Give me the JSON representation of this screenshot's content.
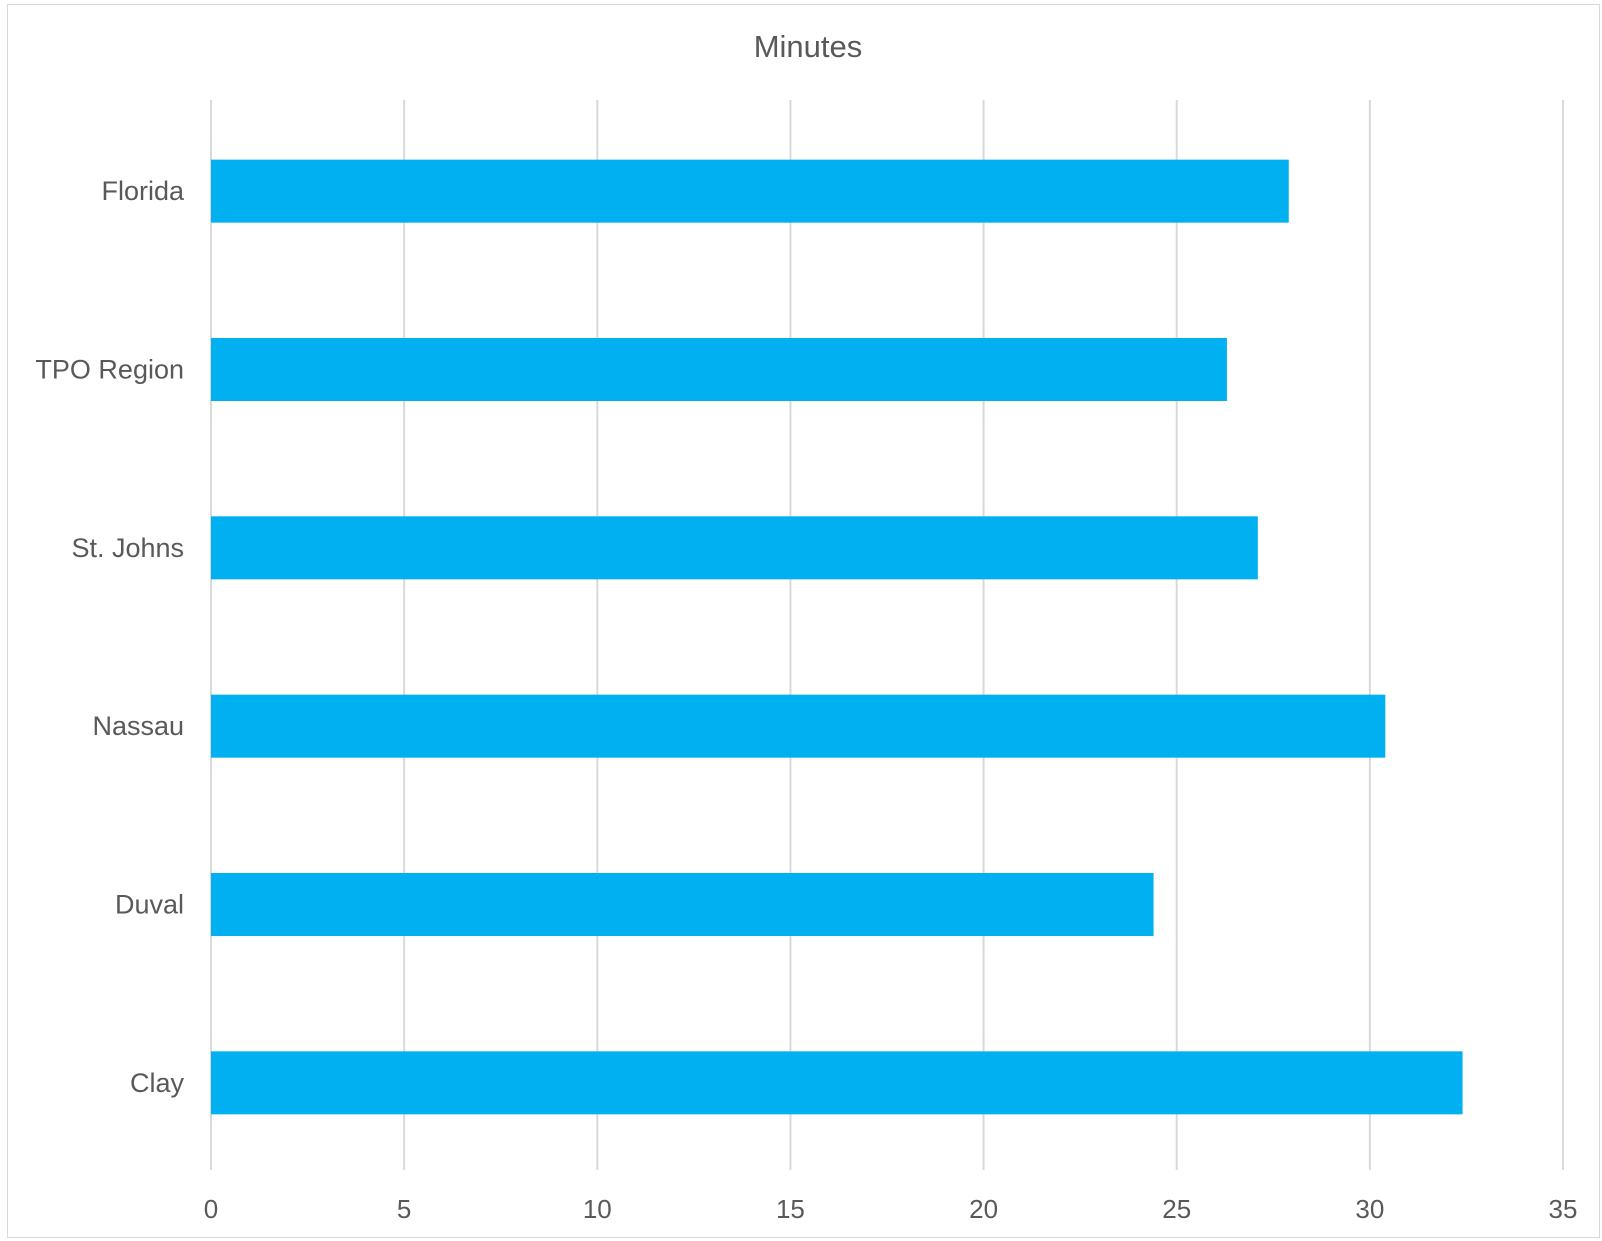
{
  "chart_data": {
    "type": "bar",
    "orientation": "horizontal",
    "title": "Minutes",
    "categories": [
      "Florida",
      "TPO Region",
      "St. Johns",
      "Nassau",
      "Duval",
      "Clay"
    ],
    "values": [
      27.9,
      26.3,
      27.1,
      30.4,
      24.4,
      32.4
    ],
    "xlim": [
      0,
      35
    ],
    "xticks": [
      "0",
      "5",
      "10",
      "15",
      "20",
      "25",
      "30",
      "35"
    ],
    "xlabel": "",
    "ylabel": "",
    "grid": "vertical",
    "legend": "none",
    "bar_color": "#00b0f0",
    "grid_color": "#d9d9d9",
    "text_color": "#595959"
  }
}
